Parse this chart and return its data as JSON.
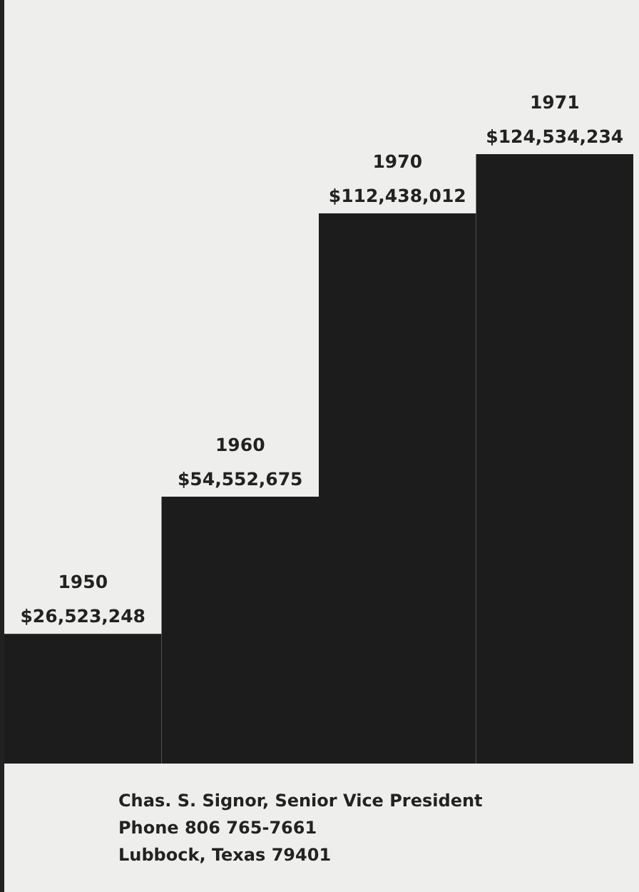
{
  "chart_data": {
    "type": "bar",
    "categories": [
      "1950",
      "1960",
      "1970",
      "1971"
    ],
    "values": [
      26523248,
      54552675,
      112438012,
      124534234
    ],
    "value_labels": [
      "$26,523,248",
      "$54,552,675",
      "$112,438,012",
      "$124,534,234"
    ],
    "color": "#1c1c1c",
    "legend": false,
    "tick_labels": false,
    "annotations": [
      "Chas. S. Signor, Senior Vice President",
      "Phone 806 765-7661",
      "Lubbock, Texas 79401"
    ]
  }
}
